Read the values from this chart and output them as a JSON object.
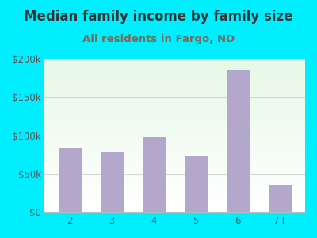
{
  "title": "Median family income by family size",
  "subtitle": "All residents in Fargo, ND",
  "categories": [
    "2",
    "3",
    "4",
    "5",
    "6",
    "7+"
  ],
  "values": [
    83000,
    78000,
    98000,
    73000,
    185000,
    35000
  ],
  "bar_color": "#b3a8cc",
  "background_outer": "#00eeff",
  "title_color": "#333333",
  "subtitle_color": "#7a6a5a",
  "tick_color": "#555555",
  "ylim": [
    0,
    200000
  ],
  "yticks": [
    0,
    50000,
    100000,
    150000,
    200000
  ],
  "ytick_labels": [
    "$0",
    "$50k",
    "$100k",
    "$150k",
    "$200k"
  ],
  "title_fontsize": 12,
  "subtitle_fontsize": 9.5,
  "tick_fontsize": 8.5
}
